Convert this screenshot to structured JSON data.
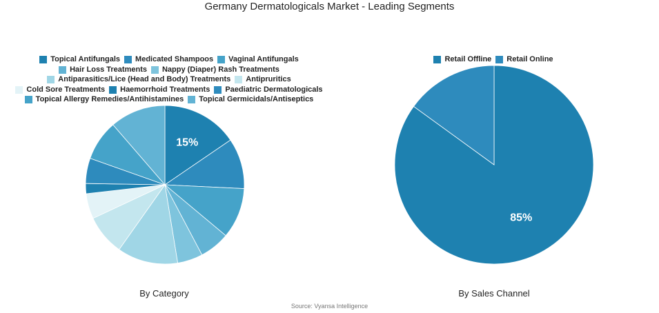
{
  "title": "Germany Dermatologicals Market - Leading Segments",
  "source": "Source: Vyansa Intelligence",
  "chart_data": [
    {
      "type": "pie",
      "subtitle": "By Category",
      "categories": [
        "Topical Antifungals",
        "Medicated Shampoos",
        "Vaginal Antifungals",
        "Hair Loss Treatments",
        "Nappy (Diaper) Rash Treatments",
        "Antiparasitics/Lice (Head and Body) Treatments",
        "Antipruritics",
        "Cold Sore Treatments",
        "Haemorrhoid Treatments",
        "Paediatric Dermatologicals",
        "Topical Allergy Remedies/Antihistamines",
        "Topical Germicidals/Antiseptics"
      ],
      "values": [
        15,
        10,
        10,
        6,
        5,
        12,
        8,
        5,
        2,
        5,
        8,
        11
      ],
      "colors": [
        "#1e81b0",
        "#2e8bbd",
        "#45a3c9",
        "#62b3d4",
        "#7ec4dd",
        "#a0d6e6",
        "#c3e6ee",
        "#e3f3f7",
        "#1e81b0",
        "#2e8bbd",
        "#45a3c9",
        "#62b3d4"
      ],
      "data_labels": [
        "15%",
        "",
        "",
        "",
        "",
        "",
        "",
        "",
        "",
        "",
        "",
        ""
      ],
      "legend_position": "top"
    },
    {
      "type": "pie",
      "subtitle": "By Sales Channel",
      "categories": [
        "Retail Offline",
        "Retail Online"
      ],
      "values": [
        85,
        15
      ],
      "colors": [
        "#1e81b0",
        "#2e8bbd"
      ],
      "data_labels": [
        "85%",
        ""
      ],
      "legend_position": "top"
    }
  ]
}
